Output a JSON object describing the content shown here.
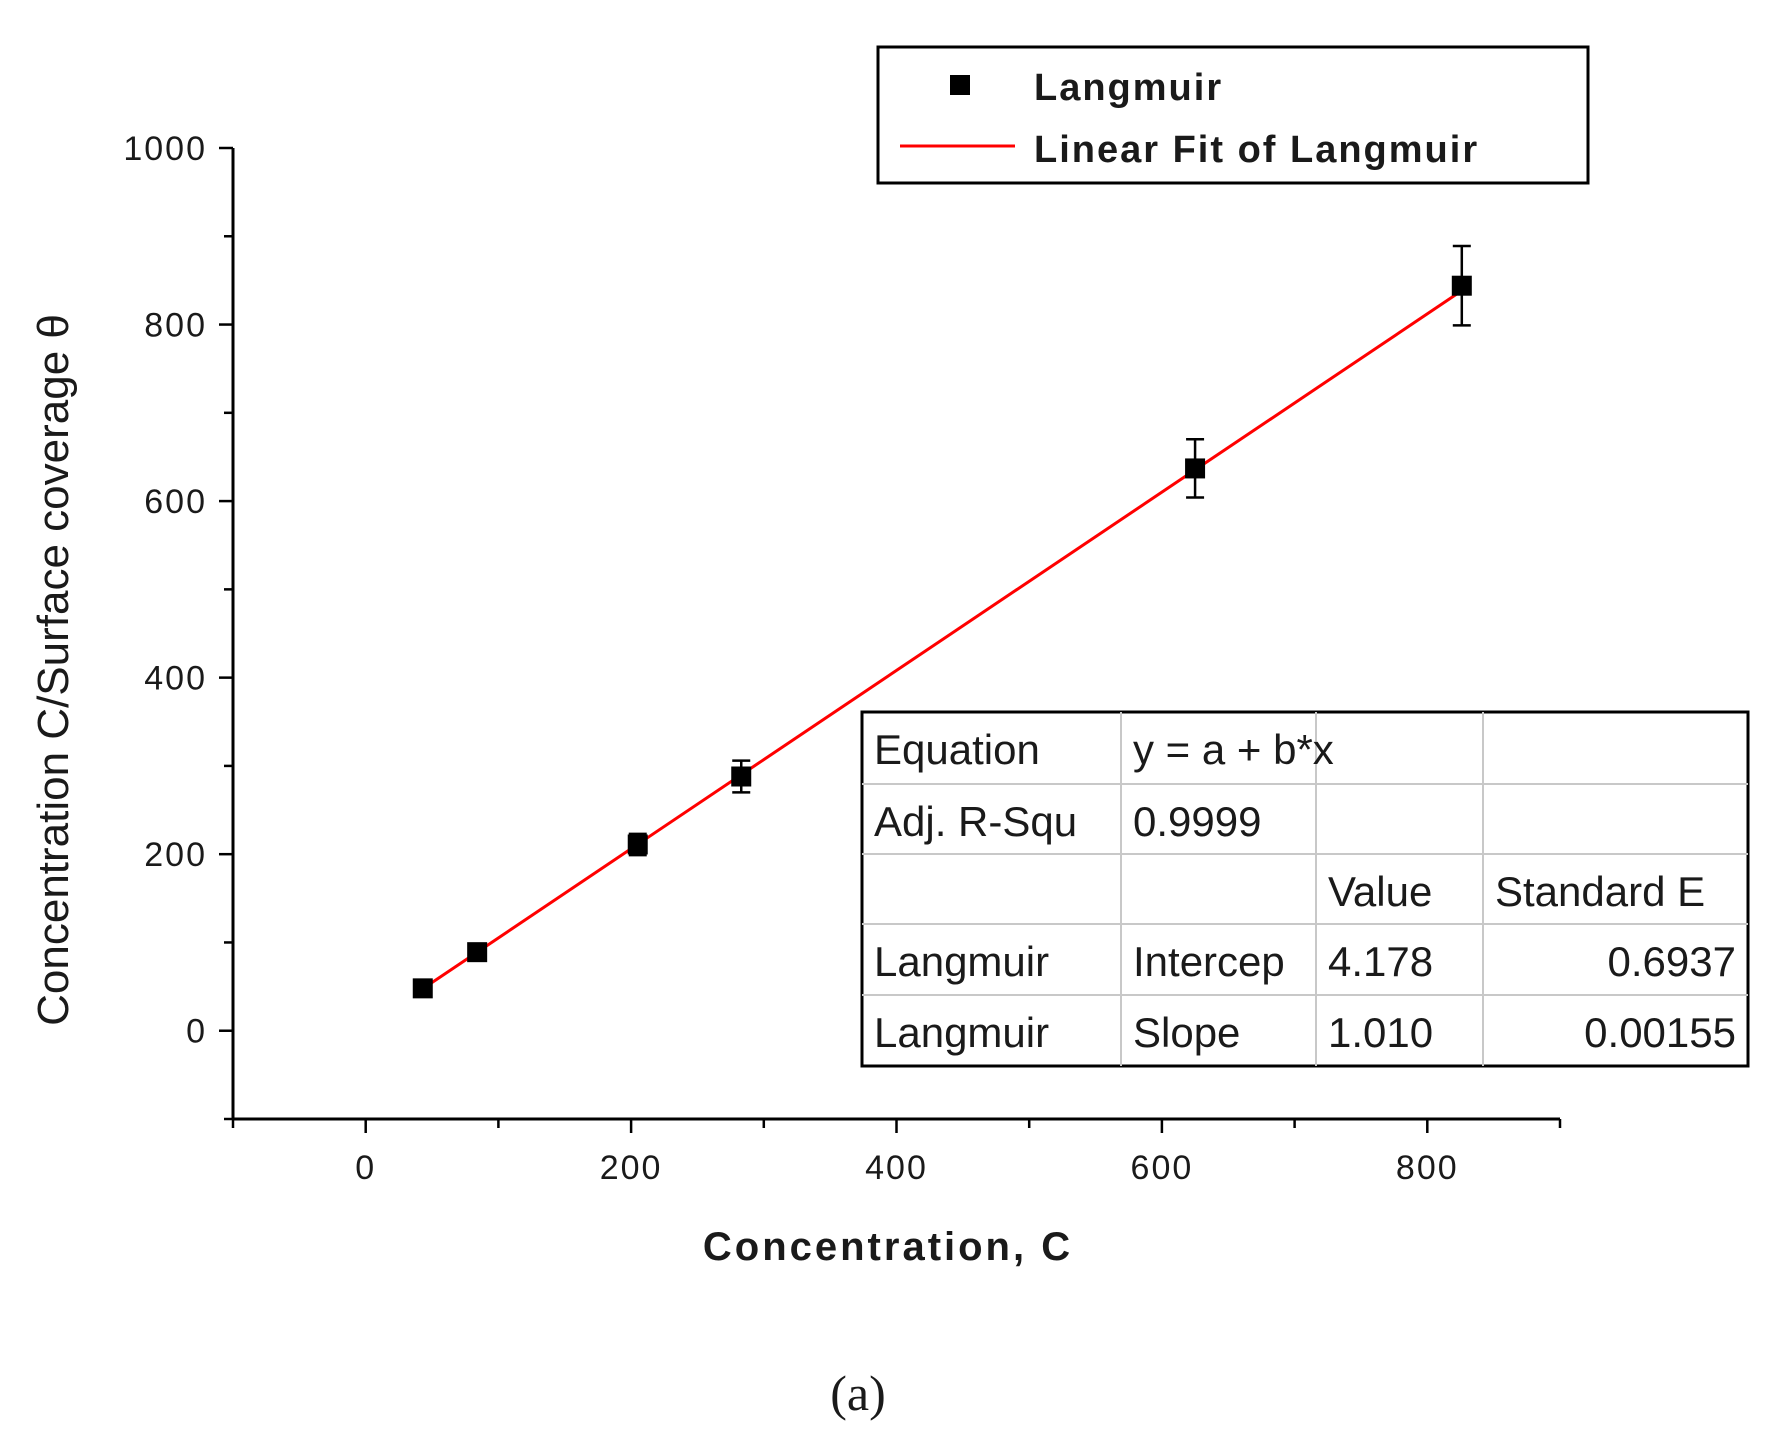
{
  "chart_data": {
    "type": "scatter",
    "xlabel": "Concentration, C",
    "ylabel": "Concentration C/Surface coverage θ",
    "xlim": [
      -100,
      900
    ],
    "ylim": [
      -100,
      1000
    ],
    "x_ticks": [
      0,
      200,
      400,
      600,
      800
    ],
    "y_ticks": [
      0,
      200,
      400,
      600,
      800,
      1000
    ],
    "grid": false,
    "legend_placement": "top-right",
    "series": [
      {
        "name": "Langmuir",
        "kind": "scatter",
        "marker": "square",
        "color": "#000000",
        "x": [
          43,
          84,
          205,
          283,
          625,
          826
        ],
        "y": [
          48,
          89,
          211,
          288,
          637,
          844
        ],
        "error": [
          0,
          0,
          12,
          18,
          33,
          45
        ]
      },
      {
        "name": "Linear Fit of Langmuir",
        "kind": "line",
        "color": "#ff0000",
        "x": [
          43,
          826
        ],
        "y": [
          47.6,
          838.4
        ]
      }
    ],
    "fit_table": {
      "rows": [
        [
          "Equation",
          "y = a + b*x",
          "",
          ""
        ],
        [
          "Adj. R-Squ",
          "0.9999",
          "",
          ""
        ],
        [
          "",
          "",
          "Value",
          "Standard E"
        ],
        [
          "Langmuir",
          "Intercep",
          "4.178",
          "0.6937"
        ],
        [
          "Langmuir",
          "Slope",
          "1.010",
          "0.00155"
        ]
      ]
    },
    "panel_label": "(a)"
  }
}
